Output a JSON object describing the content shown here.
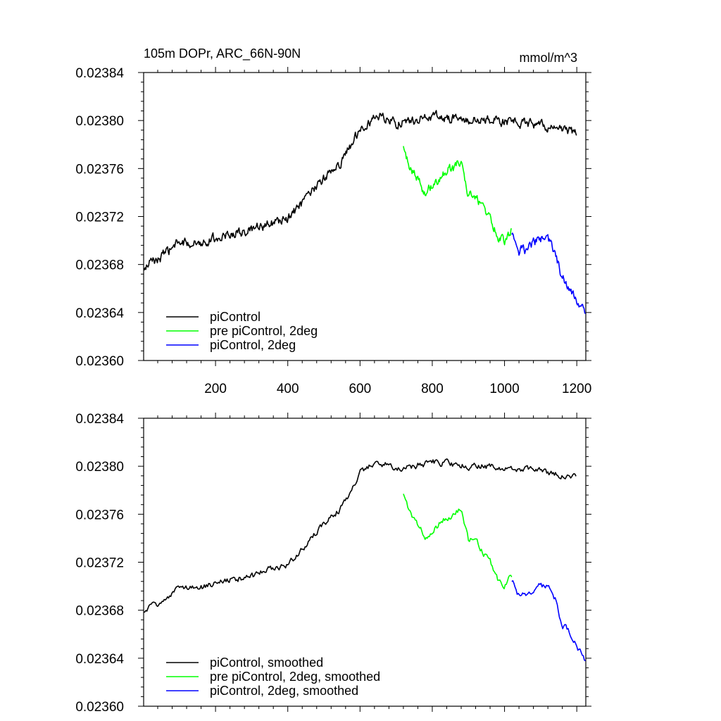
{
  "figure": {
    "title_left": "105m DOPr, ARC_66N-90N",
    "title_right": "mmol/m^3"
  },
  "chart_data": [
    {
      "type": "line",
      "panel": "top",
      "title": "105m DOPr, ARC_66N-90N",
      "units": "mmol/m^3",
      "xlabel": "",
      "ylabel": "",
      "xlim": [
        1,
        1225
      ],
      "ylim": [
        0.0236,
        0.02384
      ],
      "xticks": [
        200,
        400,
        600,
        800,
        1000,
        1200
      ],
      "xtick_labels": [
        "200",
        "400",
        "600",
        "800",
        "1000",
        "1200"
      ],
      "yticks": [
        0.0236,
        0.02364,
        0.02368,
        0.02372,
        0.02376,
        0.0238,
        0.02384
      ],
      "ytick_labels": [
        "0.02360",
        "0.02364",
        "0.02368",
        "0.02372",
        "0.02376",
        "0.02380",
        "0.02384"
      ],
      "legend_position": "bottom-left",
      "noise_amplitude": 7.2e-06,
      "series": [
        {
          "name": "piControl",
          "color": "#000000",
          "x": [
            1,
            20,
            50,
            80,
            100,
            150,
            200,
            250,
            300,
            350,
            400,
            450,
            500,
            550,
            600,
            650,
            700,
            750,
            800,
            850,
            900,
            950,
            1000,
            1050,
            1100,
            1150,
            1200
          ],
          "y": [
            0.023675,
            0.023682,
            0.023686,
            0.023694,
            0.023698,
            0.023698,
            0.023702,
            0.023706,
            0.023708,
            0.023714,
            0.023718,
            0.023734,
            0.023752,
            0.023766,
            0.023794,
            0.023804,
            0.023798,
            0.0238,
            0.023804,
            0.023802,
            0.0238,
            0.0238,
            0.023799,
            0.023798,
            0.023796,
            0.023793,
            0.02379
          ]
        },
        {
          "name": "pre piControl, 2deg",
          "color": "#00ff00",
          "x": [
            720,
            740,
            760,
            780,
            800,
            820,
            840,
            860,
            880,
            900,
            920,
            940,
            960,
            980,
            1000,
            1020
          ],
          "y": [
            0.023776,
            0.023759,
            0.023751,
            0.02374,
            0.023746,
            0.023752,
            0.023758,
            0.02376,
            0.023767,
            0.023738,
            0.023738,
            0.023728,
            0.02372,
            0.023704,
            0.0237,
            0.023709
          ]
        },
        {
          "name": "piControl, 2deg",
          "color": "#0000ff",
          "x": [
            1020,
            1040,
            1060,
            1080,
            1100,
            1120,
            1140,
            1160,
            1180,
            1200,
            1225
          ],
          "y": [
            0.023708,
            0.023692,
            0.023692,
            0.023698,
            0.023701,
            0.0237,
            0.02369,
            0.023668,
            0.023662,
            0.02365,
            0.023638
          ]
        }
      ]
    },
    {
      "type": "line",
      "panel": "bottom",
      "title": "",
      "xlabel": "",
      "ylabel": "",
      "xlim": [
        1,
        1225
      ],
      "ylim": [
        0.0236,
        0.02384
      ],
      "xticks": [
        200,
        400,
        600,
        800,
        1000,
        1200
      ],
      "xtick_labels": [],
      "yticks": [
        0.0236,
        0.02364,
        0.02368,
        0.02372,
        0.02376,
        0.0238,
        0.02384
      ],
      "ytick_labels": [
        "0.02360",
        "0.02364",
        "0.02368",
        "0.02372",
        "0.02376",
        "0.02380",
        "0.02384"
      ],
      "legend_position": "bottom-left",
      "noise_amplitude": 5e-06,
      "series": [
        {
          "name": "piControl, smoothed",
          "color": "#000000",
          "x": [
            1,
            20,
            50,
            80,
            100,
            150,
            200,
            250,
            300,
            350,
            400,
            450,
            500,
            550,
            600,
            650,
            700,
            750,
            800,
            850,
            900,
            950,
            1000,
            1050,
            1100,
            1150,
            1200
          ],
          "y": [
            0.023677,
            0.023682,
            0.023687,
            0.023694,
            0.023698,
            0.023698,
            0.023702,
            0.023706,
            0.023708,
            0.023714,
            0.023718,
            0.023734,
            0.023752,
            0.023766,
            0.023794,
            0.023804,
            0.023798,
            0.0238,
            0.023804,
            0.023802,
            0.0238,
            0.0238,
            0.023799,
            0.023798,
            0.023796,
            0.023793,
            0.02379
          ]
        },
        {
          "name": "pre piControl, 2deg, smoothed",
          "color": "#00ff00",
          "x": [
            720,
            740,
            760,
            780,
            800,
            820,
            840,
            860,
            880,
            900,
            920,
            940,
            960,
            980,
            1000,
            1020
          ],
          "y": [
            0.023775,
            0.02376,
            0.023751,
            0.023741,
            0.023746,
            0.023752,
            0.023758,
            0.02376,
            0.023766,
            0.023738,
            0.023738,
            0.023728,
            0.02372,
            0.023705,
            0.023701,
            0.023709
          ]
        },
        {
          "name": "piControl, 2deg, smoothed",
          "color": "#0000ff",
          "x": [
            1020,
            1040,
            1060,
            1080,
            1100,
            1120,
            1140,
            1160,
            1180,
            1200,
            1225
          ],
          "y": [
            0.023706,
            0.023692,
            0.023693,
            0.023698,
            0.0237,
            0.023699,
            0.02369,
            0.023668,
            0.023662,
            0.02365,
            0.023638
          ]
        }
      ]
    }
  ]
}
